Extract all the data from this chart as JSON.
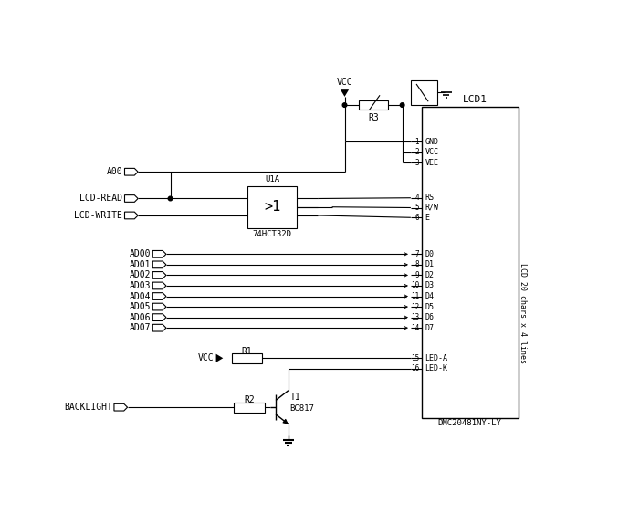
{
  "bg_color": "#ffffff",
  "line_color": "#000000",
  "figsize": [
    6.78,
    5.74
  ],
  "dpi": 100,
  "pin_labels": [
    "GND",
    "VCC",
    "VEE",
    "RS",
    "R/W",
    "E",
    "D0",
    "D1",
    "D2",
    "D3",
    "D4",
    "D5",
    "D6",
    "D7",
    "LED-A",
    "LED-K"
  ],
  "pin_numbers": [
    "1",
    "2",
    "3",
    "4",
    "5",
    "6",
    "7",
    "8",
    "9",
    "10",
    "11",
    "12",
    "13",
    "14",
    "15",
    "16"
  ],
  "ad_labels": [
    "AD00",
    "AD01",
    "AD02",
    "AD03",
    "AD04",
    "AD05",
    "AD06",
    "AD07"
  ],
  "lcd_label": "LCD1",
  "lcd_sublabel": "DMC20481NY-LY",
  "lcd_side_label": "LCD 20 chars x 4 lines",
  "r3_label": "R3",
  "r1_label": "R1",
  "r2_label": "R2",
  "u1a_label": "U1A",
  "u1a_sublabel": "74HCT32D",
  "u1a_symbol": ">1",
  "t1_label": "T1",
  "t1_sublabel": "BC817",
  "vcc_label": "VCC",
  "a00_label": "A00",
  "lcd_read_label": "LCD-READ",
  "lcd_write_label": "LCD-WRITE",
  "backlight_label": "BACKLIGHT",
  "font_size": 7,
  "font_family": "monospace"
}
